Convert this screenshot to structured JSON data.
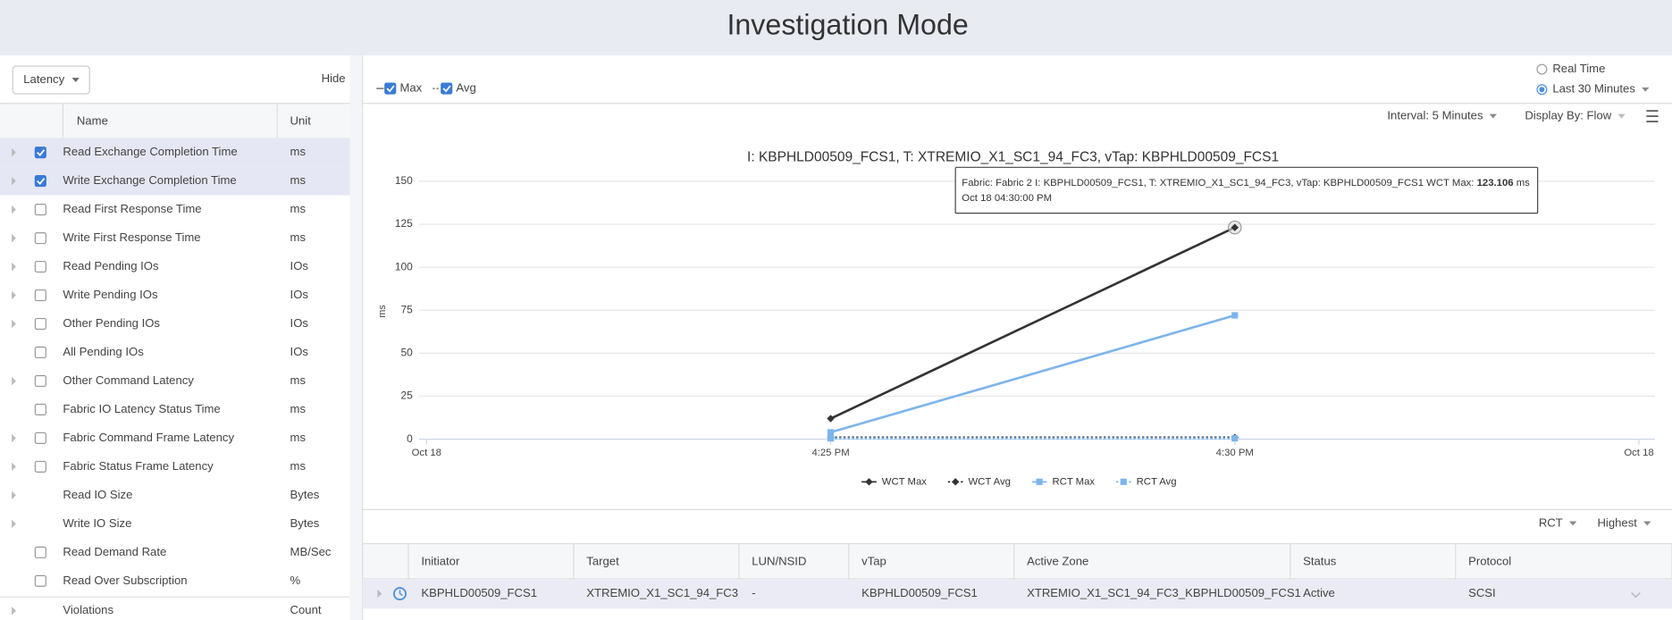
{
  "header": {
    "title": "Investigation Mode"
  },
  "sidebar": {
    "dropdown": "Latency",
    "hide": "Hide",
    "columns": [
      "Name",
      "Unit"
    ],
    "metrics": [
      {
        "name": "Read Exchange Completion Time",
        "unit": "ms",
        "checkbox": true,
        "checked": true,
        "expandable": true,
        "selected": true
      },
      {
        "name": "Write Exchange Completion Time",
        "unit": "ms",
        "checkbox": true,
        "checked": true,
        "expandable": true,
        "selected": true
      },
      {
        "name": "Read First Response Time",
        "unit": "ms",
        "checkbox": true,
        "checked": false,
        "expandable": true,
        "selected": false
      },
      {
        "name": "Write First Response Time",
        "unit": "ms",
        "checkbox": true,
        "checked": false,
        "expandable": true,
        "selected": false
      },
      {
        "name": "Read Pending IOs",
        "unit": "IOs",
        "checkbox": true,
        "checked": false,
        "expandable": true,
        "selected": false
      },
      {
        "name": "Write Pending IOs",
        "unit": "IOs",
        "checkbox": true,
        "checked": false,
        "expandable": true,
        "selected": false
      },
      {
        "name": "Other Pending IOs",
        "unit": "IOs",
        "checkbox": true,
        "checked": false,
        "expandable": true,
        "selected": false
      },
      {
        "name": "All Pending IOs",
        "unit": "IOs",
        "checkbox": true,
        "checked": false,
        "expandable": false,
        "selected": false
      },
      {
        "name": "Other Command Latency",
        "unit": "ms",
        "checkbox": true,
        "checked": false,
        "expandable": true,
        "selected": false
      },
      {
        "name": "Fabric IO Latency Status Time",
        "unit": "ms",
        "checkbox": true,
        "checked": false,
        "expandable": false,
        "selected": false
      },
      {
        "name": "Fabric Command Frame Latency",
        "unit": "ms",
        "checkbox": true,
        "checked": false,
        "expandable": true,
        "selected": false
      },
      {
        "name": "Fabric Status Frame Latency",
        "unit": "ms",
        "checkbox": true,
        "checked": false,
        "expandable": true,
        "selected": false
      },
      {
        "name": "Read IO Size",
        "unit": "Bytes",
        "checkbox": false,
        "checked": false,
        "expandable": true,
        "selected": false
      },
      {
        "name": "Write IO Size",
        "unit": "Bytes",
        "checkbox": false,
        "checked": false,
        "expandable": true,
        "selected": false
      },
      {
        "name": "Read Demand Rate",
        "unit": "MB/Sec",
        "checkbox": true,
        "checked": false,
        "expandable": false,
        "selected": false
      },
      {
        "name": "Read Over Subscription",
        "unit": "%",
        "checkbox": true,
        "checked": false,
        "expandable": false,
        "selected": false
      },
      {
        "name": "Violations",
        "unit": "Count",
        "checkbox": false,
        "checked": false,
        "expandable": true,
        "selected": false
      }
    ]
  },
  "toolbar": {
    "toggles": [
      {
        "label": "Max",
        "checked": true,
        "dashed": false
      },
      {
        "label": "Avg",
        "checked": true,
        "dashed": true
      }
    ],
    "time_options": [
      {
        "label": "Real Time",
        "selected": false
      },
      {
        "label": "Last 30 Minutes",
        "selected": true
      }
    ],
    "interval": "Interval: 5 Minutes",
    "display_by": "Display By: Flow"
  },
  "chart_data": {
    "type": "line",
    "title": "I: KBPHLD00509_FCS1, T: XTREMIO_X1_SC1_94_FC3, vTap: KBPHLD00509_FCS1",
    "y_label": "ms",
    "categories": [
      "Oct 18",
      "4:25 PM",
      "4:30 PM",
      "Oct 18"
    ],
    "series": [
      {
        "name": "WCT Max",
        "color": "#333333",
        "dashed": false,
        "marker": "diamond",
        "values": [
          null,
          12,
          123.106,
          null
        ]
      },
      {
        "name": "WCT Avg",
        "color": "#333333",
        "dashed": true,
        "marker": "diamond",
        "values": [
          null,
          1,
          1,
          null
        ]
      },
      {
        "name": "RCT Max",
        "color": "#7cb5ec",
        "dashed": false,
        "marker": "square",
        "values": [
          null,
          4,
          72,
          null
        ]
      },
      {
        "name": "RCT Avg",
        "color": "#7cb5ec",
        "dashed": true,
        "marker": "square",
        "values": [
          null,
          0.5,
          0.5,
          null
        ]
      }
    ],
    "ylim": [
      0,
      150
    ],
    "yticks": [
      0,
      25,
      50,
      75,
      100,
      125,
      150
    ],
    "grid": true,
    "tooltip": {
      "text": "Fabric: Fabric 2 I: KBPHLD00509_FCS1, T: XTREMIO_X1_SC1_94_FC3, vTap: KBPHLD00509_FCS1 WCT Max:",
      "unit": "ms",
      "time": "Oct 18 04:30:00 PM"
    }
  },
  "table_controls": {
    "metric": "RCT",
    "order": "Highest"
  },
  "table": {
    "columns": [
      "Initiator",
      "Target",
      "LUN/NSID",
      "vTap",
      "Active Zone",
      "Status",
      "Protocol"
    ],
    "rows": [
      [
        "KBPHLD00509_FCS1",
        "XTREMIO_X1_SC1_94_FC3",
        "-",
        "KBPHLD00509_FCS1",
        "XTREMIO_X1_SC1_94_FC3_KBPHLD00509_FCS1",
        "Active",
        "SCSI"
      ]
    ]
  }
}
